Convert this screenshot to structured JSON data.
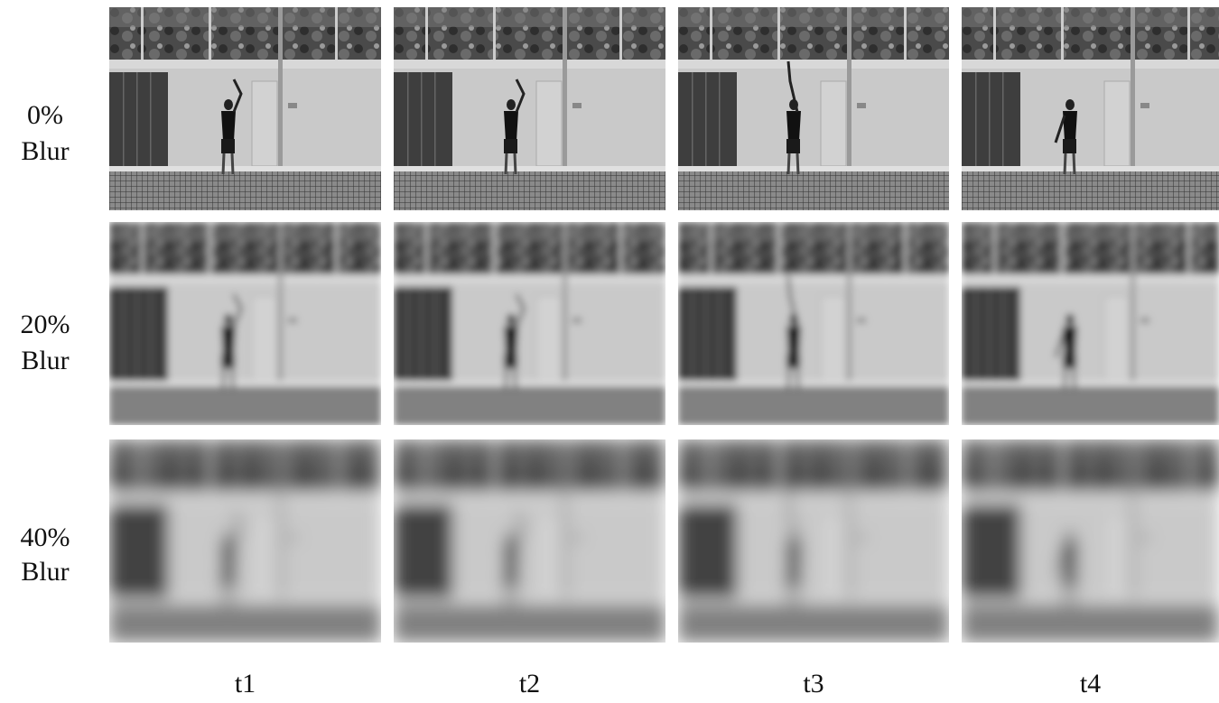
{
  "rows": [
    {
      "label": [
        "0%",
        "Blur"
      ]
    },
    {
      "label": [
        "20%",
        "Blur"
      ]
    },
    {
      "label": [
        "40%",
        "Blur"
      ]
    }
  ],
  "columns": [
    "t1",
    "t2",
    "t3",
    "t4"
  ]
}
